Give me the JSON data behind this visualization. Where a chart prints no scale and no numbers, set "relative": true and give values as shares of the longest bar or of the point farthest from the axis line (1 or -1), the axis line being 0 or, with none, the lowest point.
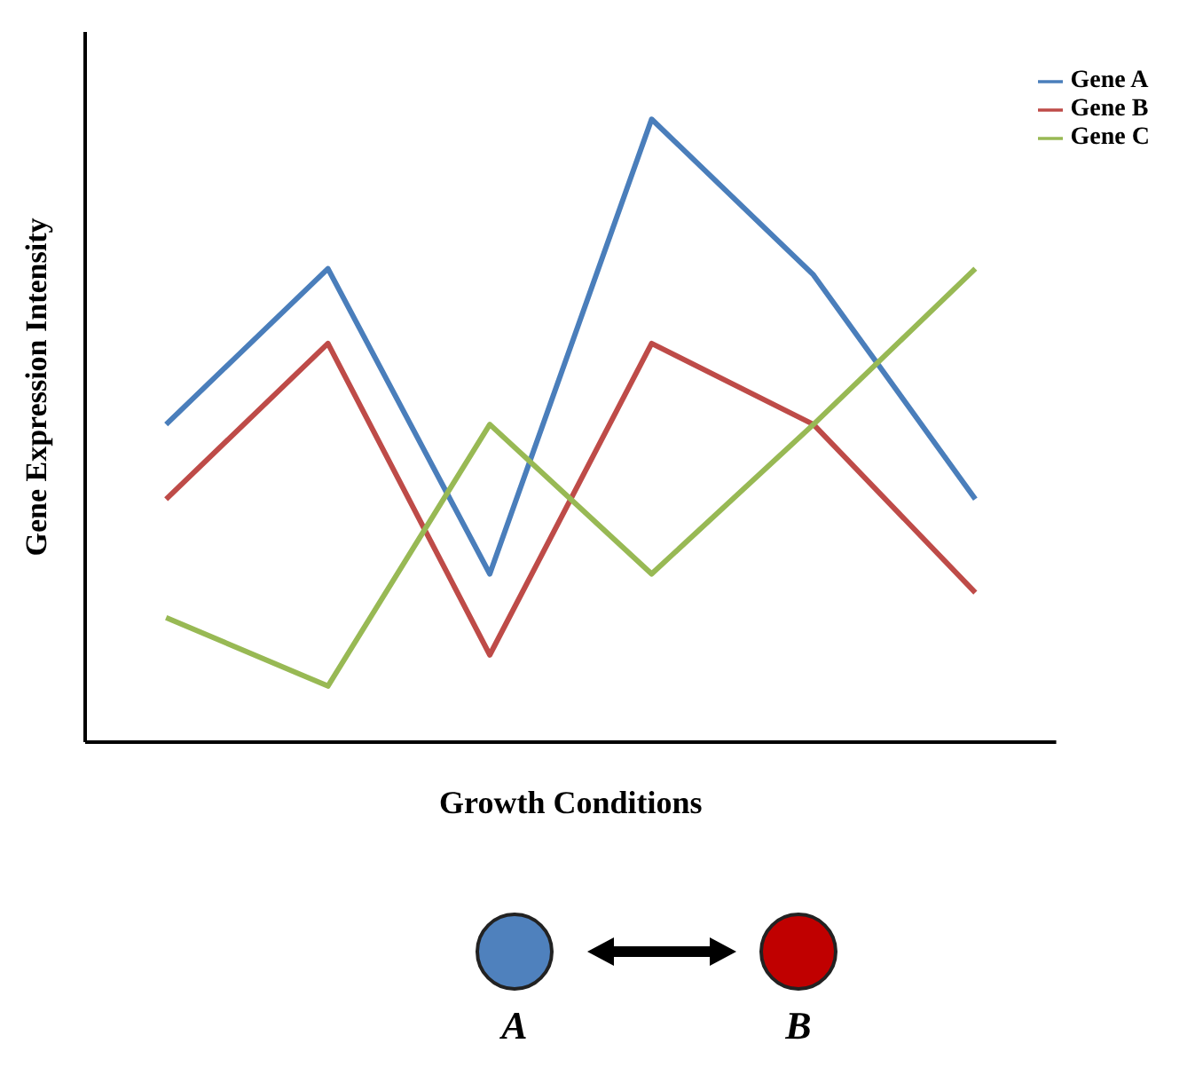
{
  "chart_data": {
    "type": "line",
    "relative": true,
    "xlabel": "Growth Conditions",
    "ylabel": "Gene Expression Intensity",
    "categories": [
      null,
      null,
      null,
      null,
      null,
      null
    ],
    "series": [
      {
        "name": "Gene A",
        "color": "#4a7ebb",
        "values": [
          0.51,
          0.76,
          0.27,
          1,
          0.75,
          0.39
        ]
      },
      {
        "name": "Gene B",
        "color": "#be4b48",
        "values": [
          0.39,
          0.64,
          0.14,
          0.64,
          0.51,
          0.24
        ]
      },
      {
        "name": "Gene C",
        "color": "#98b954",
        "values": [
          0.2,
          0.09,
          0.51,
          0.27,
          0.51,
          0.76
        ]
      }
    ],
    "legend": "top right",
    "marker": "none",
    "annotations": [
      "A",
      "B"
    ]
  }
}
